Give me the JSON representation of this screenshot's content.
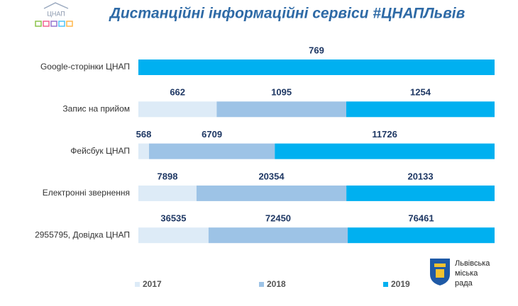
{
  "chart_data": {
    "type": "bar",
    "orientation": "horizontal",
    "stacking": "percent",
    "title": "Дистанційні інформаційні сервіси #ЦНАПЛьвів",
    "categories": [
      "Google-сторінки ЦНАП",
      "Запис на прийом",
      "Фейсбук ЦНАП",
      "Електронні звернення",
      "2955795, Довідка ЦНАП"
    ],
    "series": [
      {
        "name": "2017",
        "color": "#ddebf7",
        "values": [
          null,
          662,
          568,
          7898,
          36535
        ]
      },
      {
        "name": "2018",
        "color": "#9dc3e6",
        "values": [
          null,
          1095,
          6709,
          20354,
          72450
        ]
      },
      {
        "name": "2019",
        "color": "#00b0f0",
        "values": [
          769,
          1254,
          11726,
          20133,
          76461
        ]
      }
    ],
    "legend": "bottom"
  },
  "logo": {
    "text": "ЦНАП"
  },
  "city_logo": {
    "lines": [
      "Львівська",
      "міська",
      "рада"
    ]
  }
}
